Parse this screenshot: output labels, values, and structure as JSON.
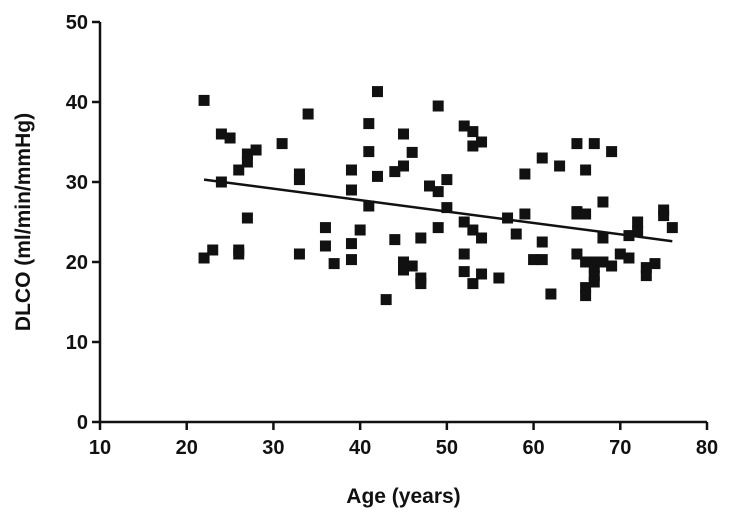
{
  "chart_data": {
    "type": "scatter",
    "title": "",
    "xlabel": "Age (years)",
    "ylabel": "DLCO (ml/min/mmHg)",
    "xlim": [
      10,
      80
    ],
    "ylim": [
      0,
      50
    ],
    "xticks": [
      "10",
      "20",
      "30",
      "40",
      "50",
      "60",
      "70",
      "80"
    ],
    "yticks": [
      "0",
      "10",
      "20",
      "30",
      "40",
      "50"
    ],
    "grid": false,
    "trendline": {
      "x": [
        22,
        76
      ],
      "y": [
        30.3,
        22.6
      ]
    },
    "points": [
      [
        22,
        40.2
      ],
      [
        22,
        20.5
      ],
      [
        23,
        21.5
      ],
      [
        24,
        30.0
      ],
      [
        24,
        36.0
      ],
      [
        25,
        35.5
      ],
      [
        26,
        21.5
      ],
      [
        26,
        21.0
      ],
      [
        26,
        31.5
      ],
      [
        27,
        32.5
      ],
      [
        27,
        33.5
      ],
      [
        27,
        25.5
      ],
      [
        28,
        34.0
      ],
      [
        31,
        34.8
      ],
      [
        33,
        31.0
      ],
      [
        33,
        30.3
      ],
      [
        33,
        21.0
      ],
      [
        34,
        38.5
      ],
      [
        36,
        24.3
      ],
      [
        36,
        22.0
      ],
      [
        37,
        19.8
      ],
      [
        39,
        31.5
      ],
      [
        39,
        29.0
      ],
      [
        39,
        22.3
      ],
      [
        39,
        20.3
      ],
      [
        40,
        24.0
      ],
      [
        41,
        37.3
      ],
      [
        41,
        33.8
      ],
      [
        41,
        27.0
      ],
      [
        42,
        41.3
      ],
      [
        42,
        30.7
      ],
      [
        43,
        15.3
      ],
      [
        44,
        22.8
      ],
      [
        44,
        31.3
      ],
      [
        45,
        36.0
      ],
      [
        45,
        32.0
      ],
      [
        45,
        20.0
      ],
      [
        45,
        19.0
      ],
      [
        46,
        33.7
      ],
      [
        46,
        19.5
      ],
      [
        47,
        18.0
      ],
      [
        47,
        17.3
      ],
      [
        47,
        23.0
      ],
      [
        48,
        29.5
      ],
      [
        49,
        39.5
      ],
      [
        49,
        28.8
      ],
      [
        49,
        24.3
      ],
      [
        50,
        30.3
      ],
      [
        50,
        26.8
      ],
      [
        52,
        37.0
      ],
      [
        52,
        25.0
      ],
      [
        52,
        21.0
      ],
      [
        52,
        18.8
      ],
      [
        53,
        36.3
      ],
      [
        53,
        34.5
      ],
      [
        53,
        24.0
      ],
      [
        53,
        17.3
      ],
      [
        54,
        35.0
      ],
      [
        54,
        23.0
      ],
      [
        54,
        18.5
      ],
      [
        56,
        18.0
      ],
      [
        57,
        25.5
      ],
      [
        58,
        23.5
      ],
      [
        59,
        31.0
      ],
      [
        59,
        26.0
      ],
      [
        60,
        20.3
      ],
      [
        61,
        33.0
      ],
      [
        61,
        22.5
      ],
      [
        61,
        20.3
      ],
      [
        62,
        16.0
      ],
      [
        63,
        32.0
      ],
      [
        65,
        34.8
      ],
      [
        65,
        26.3
      ],
      [
        65,
        26.0
      ],
      [
        65,
        21.0
      ],
      [
        66,
        31.5
      ],
      [
        66,
        26.0
      ],
      [
        66,
        20.0
      ],
      [
        66,
        16.8
      ],
      [
        66,
        15.8
      ],
      [
        67,
        34.8
      ],
      [
        67,
        20.0
      ],
      [
        67,
        19.3
      ],
      [
        67,
        18.3
      ],
      [
        67,
        17.5
      ],
      [
        68,
        27.5
      ],
      [
        68,
        23.0
      ],
      [
        68,
        20.0
      ],
      [
        69,
        33.8
      ],
      [
        69,
        19.5
      ],
      [
        70,
        21.0
      ],
      [
        71,
        23.3
      ],
      [
        71,
        20.5
      ],
      [
        72,
        25.0
      ],
      [
        72,
        23.8
      ],
      [
        73,
        19.3
      ],
      [
        73,
        18.3
      ],
      [
        74,
        19.8
      ],
      [
        75,
        26.5
      ],
      [
        75,
        25.8
      ],
      [
        76,
        24.3
      ]
    ]
  }
}
